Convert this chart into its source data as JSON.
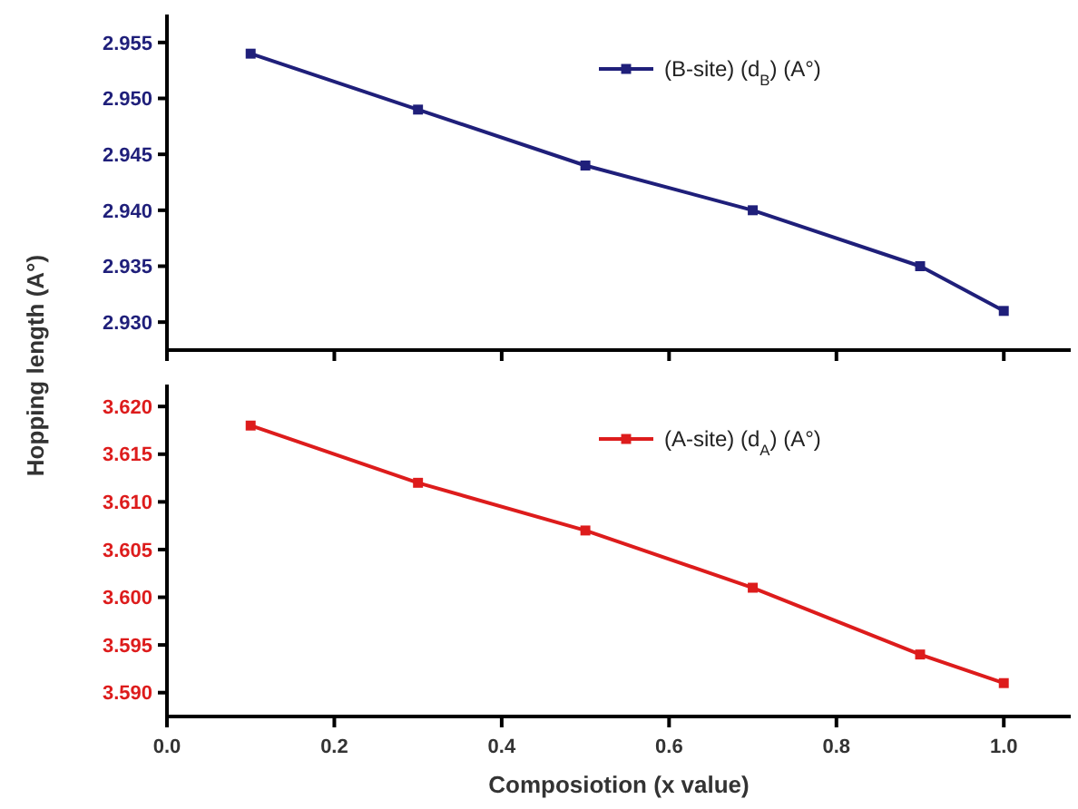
{
  "chart_data": [
    {
      "type": "line",
      "ylabel": "Hopping length  (A°)",
      "x": [
        0.1,
        0.3,
        0.5,
        0.7,
        0.9,
        1.0
      ],
      "xlim": [
        0,
        1.08
      ],
      "xticks": [
        0,
        0.2,
        0.4,
        0.6,
        0.8,
        1.0
      ],
      "ylim": [
        2.9275,
        2.9575
      ],
      "yticks": [
        {
          "value": 2.93,
          "label": "2.930"
        },
        {
          "value": 2.935,
          "label": "2.935"
        },
        {
          "value": 2.94,
          "label": "2.940"
        },
        {
          "value": 2.945,
          "label": "2.945"
        },
        {
          "value": 2.95,
          "label": "2.950"
        },
        {
          "value": 2.955,
          "label": "2.955"
        }
      ],
      "tick_labels": "y",
      "marker": "square",
      "legend": "top right",
      "grid": false,
      "series": [
        {
          "name": "(B-site) (d$_{B}$) (A°)",
          "color": "#1f1f7a",
          "values": [
            2.954,
            2.949,
            2.944,
            2.94,
            2.935,
            2.931
          ]
        }
      ]
    },
    {
      "type": "line",
      "xlabel": "Composiotion (x value)",
      "x": [
        0.1,
        0.3,
        0.5,
        0.7,
        0.9,
        1.0
      ],
      "xlim": [
        0,
        1.08
      ],
      "xticks": [
        {
          "value": 0,
          "label": "0.0"
        },
        0.2,
        0.4,
        0.6,
        0.8,
        {
          "value": 1.0,
          "label": "1.0"
        }
      ],
      "ylim": [
        3.5875,
        3.6223
      ],
      "yticks": [
        {
          "value": 3.59,
          "label": "3.590"
        },
        {
          "value": 3.595,
          "label": "3.595"
        },
        {
          "value": 3.6,
          "label": "3.600"
        },
        {
          "value": 3.605,
          "label": "3.605"
        },
        {
          "value": 3.61,
          "label": "3.610"
        },
        {
          "value": 3.615,
          "label": "3.615"
        },
        {
          "value": 3.62,
          "label": "3.620"
        }
      ],
      "marker": "square",
      "legend": "top right",
      "grid": false,
      "series": [
        {
          "name": "(A-site) (d$_{A}$) (A°)",
          "color": "#dd1c1c",
          "values": [
            3.618,
            3.612,
            3.607,
            3.601,
            3.594,
            3.591
          ]
        }
      ]
    }
  ]
}
